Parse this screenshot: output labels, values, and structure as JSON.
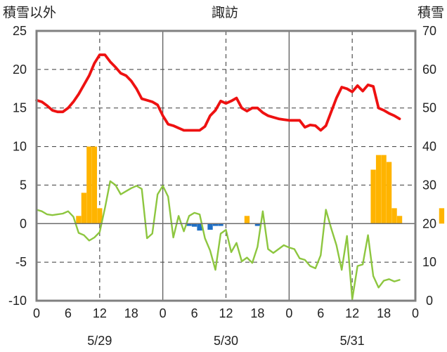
{
  "chart_data": {
    "type": "bar+line",
    "title": "諏訪",
    "left_axis_label": "積雪以外",
    "right_axis_label": "積雪",
    "left_ylim": [
      -10,
      25
    ],
    "left_yticks": [
      "25",
      "20",
      "15",
      "10",
      "5",
      "0",
      "-5",
      "-10"
    ],
    "right_ylim": [
      0,
      70
    ],
    "right_yticks": [
      "70",
      "60",
      "50",
      "40",
      "30",
      "20",
      "10",
      "0"
    ],
    "x_ticks": [
      "0",
      "6",
      "12",
      "18",
      "0",
      "6",
      "12",
      "18",
      "0",
      "6",
      "12",
      "18",
      "0"
    ],
    "dates": [
      "5/29",
      "5/30",
      "5/31"
    ],
    "hours_range": [
      0,
      72
    ],
    "grid": true,
    "colors": {
      "temperature": "#ee1111",
      "sunshine": "#8dc63f",
      "positive_bars": "#ffb400",
      "negative_bars": "#1f6fc5",
      "frame": "#808080",
      "day_grid": "#505050",
      "dash_grid": "#505050"
    },
    "series": [
      {
        "kind": "line",
        "axis": "left",
        "x": [
          0,
          1,
          2,
          3,
          4,
          5,
          6,
          7,
          8,
          9,
          10,
          11,
          12,
          13,
          14,
          15,
          16,
          17,
          18,
          19,
          20,
          21,
          22,
          23,
          24,
          25,
          26,
          27,
          28,
          29,
          30,
          31,
          32,
          33,
          34,
          35,
          36,
          37,
          38,
          39,
          40,
          41,
          42,
          43,
          44,
          45,
          46,
          47,
          48,
          49,
          50,
          51,
          52,
          53,
          54,
          55,
          56,
          57,
          58,
          59,
          60,
          61,
          62,
          63,
          64,
          65,
          66,
          67,
          68,
          69
        ],
        "values": [
          16,
          15.8,
          15.3,
          14.7,
          14.5,
          14.5,
          15,
          15.8,
          16.8,
          18,
          19.2,
          20.8,
          21.9,
          21.9,
          21,
          20.3,
          19.5,
          19.2,
          18.5,
          17.5,
          16.2,
          16,
          15.8,
          15.4,
          14,
          12.9,
          12.7,
          12.4,
          12.1,
          12.1,
          12.1,
          12.1,
          12.6,
          14,
          14.7,
          15.9,
          15.6,
          15.9,
          16.3,
          15,
          14.6,
          15,
          15,
          14.4,
          14,
          13.8,
          13.6,
          13.5,
          13.4,
          13.4,
          13.4,
          12.5,
          12.8,
          12.7,
          12.1,
          12.7,
          14.5,
          16.3,
          17.7,
          17.5,
          17.1,
          17.9,
          17.2,
          18,
          17.8,
          15,
          14.7,
          14.3,
          14,
          13.6
        ]
      },
      {
        "kind": "line",
        "axis": "left",
        "x": [
          0,
          1,
          2,
          3,
          4,
          5,
          6,
          7,
          8,
          9,
          10,
          11,
          12,
          13,
          14,
          15,
          16,
          17,
          18,
          19,
          20,
          21,
          22,
          23,
          24,
          25,
          26,
          27,
          28,
          29,
          30,
          31,
          32,
          33,
          34,
          35,
          36,
          37,
          38,
          39,
          40,
          41,
          42,
          43,
          44,
          45,
          46,
          47,
          48,
          49,
          50,
          51,
          52,
          53,
          54,
          55,
          56,
          57,
          58,
          59,
          60,
          61,
          62,
          63,
          64,
          65,
          66,
          67,
          68,
          69
        ],
        "values": [
          1.8,
          1.6,
          1.2,
          1.1,
          1.2,
          1.3,
          1.6,
          0.9,
          -1.2,
          -1.5,
          -2.2,
          -1.8,
          -1.1,
          2,
          5.5,
          5,
          3.8,
          4.2,
          4.6,
          4.9,
          4.5,
          -1.9,
          -1.3,
          3.8,
          4.9,
          3.5,
          -1.8,
          1,
          -1,
          1,
          1.4,
          1.2,
          -1.9,
          -3.5,
          -6,
          -1.3,
          -0.8,
          -3.7,
          -2.5,
          -4.9,
          -4.4,
          -5.1,
          -3,
          1.6,
          -3.3,
          -3.8,
          -3.3,
          -2.8,
          -3.1,
          -3.3,
          -4.5,
          -4.7,
          -5.5,
          -5.8,
          -4.1,
          1.8,
          -0.6,
          -2.8,
          -6,
          -1.6,
          -9.8,
          -5.5,
          -5.3,
          -1.5,
          -6.8,
          -8.3,
          -7.4,
          -7.2,
          -7.5,
          -7.3
        ]
      },
      {
        "kind": "bar",
        "axis": "left",
        "x": [
          8,
          9,
          10,
          11,
          12,
          29,
          30,
          31,
          33,
          34,
          35,
          40,
          42,
          64,
          65,
          66,
          67,
          68,
          69,
          77
        ],
        "values": [
          1,
          4,
          10,
          10,
          2,
          -0.3,
          -0.4,
          -0.9,
          -0.8,
          -0.3,
          -0.3,
          1,
          -0.3,
          7,
          8.9,
          8.9,
          8,
          2,
          1,
          2
        ]
      }
    ]
  }
}
